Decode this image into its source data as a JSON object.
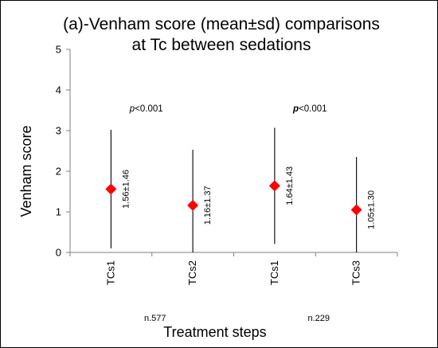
{
  "chart_data": {
    "type": "scatter",
    "title_lines": [
      "(a)-Venham score (mean±sd) comparisons",
      "at Tc between sedations"
    ],
    "xlabel": "Treatment steps",
    "ylabel": "Venham score",
    "ylim": [
      0,
      5
    ],
    "yticks": [
      0,
      1,
      2,
      3,
      4,
      5
    ],
    "grid": false,
    "categories": [
      "TCs1",
      "TCs2",
      "TCs1",
      "TCs3"
    ],
    "means": [
      1.56,
      1.16,
      1.64,
      1.05
    ],
    "sds": [
      1.46,
      1.37,
      1.43,
      1.3
    ],
    "data_labels": [
      "1.56±1.46",
      "1.16±1.37",
      "1.64±1.43",
      "1.05±1.30"
    ],
    "marker_color": "#ff0000",
    "comparisons": [
      {
        "p_prefix": "p",
        "p_text": "<0.001",
        "p_prefix_bold": false,
        "n_label": "n.577"
      },
      {
        "p_prefix": "p",
        "p_text": "<0.001",
        "p_prefix_bold": true,
        "n_label": "n.229"
      }
    ]
  }
}
